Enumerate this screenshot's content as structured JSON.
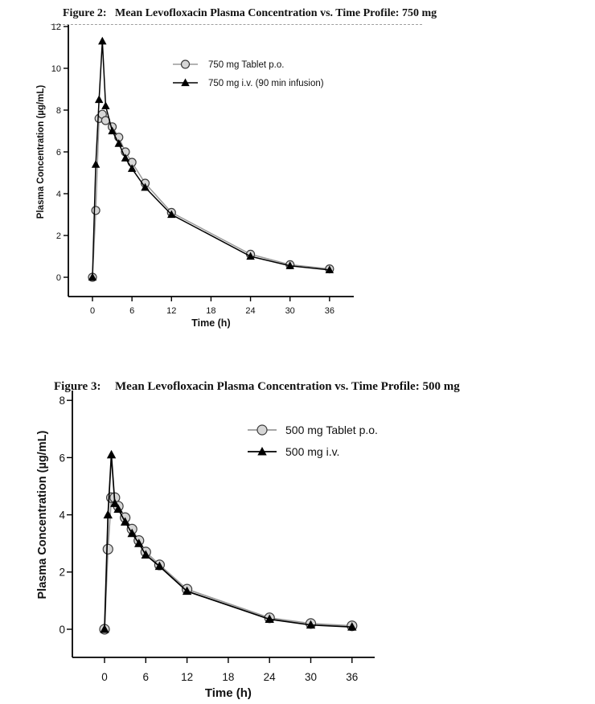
{
  "figure2": {
    "label": "Figure 2:",
    "title": "Mean Levofloxacin Plasma Concentration vs. Time Profile: 750 mg"
  },
  "figure3": {
    "label": "Figure 3:",
    "title": "Mean Levofloxacin Plasma Concentration vs. Time Profile: 500 mg"
  },
  "chart_data": [
    {
      "id": "figure-2-750mg",
      "type": "line",
      "title": "Mean Levofloxacin Plasma Concentration vs. Time Profile: 750 mg",
      "xlabel": "Time (h)",
      "ylabel": "Plasma Concentration (µg/mL)",
      "x": [
        0,
        0.5,
        1,
        1.5,
        2,
        3,
        4,
        5,
        6,
        8,
        12,
        24,
        30,
        36
      ],
      "series": [
        {
          "name": "750 mg Tablet p.o.",
          "marker": "circle",
          "line_color": "#9a9a9a",
          "marker_fill": "#d6d6d6",
          "marker_stroke": "#3b3b3b",
          "values": [
            0,
            3.2,
            7.6,
            7.8,
            7.5,
            7.2,
            6.7,
            6.0,
            5.5,
            4.5,
            3.1,
            1.1,
            0.6,
            0.4
          ]
        },
        {
          "name": "750 mg i.v. (90 min infusion)",
          "marker": "triangle",
          "line_color": "#000000",
          "marker_fill": "#000000",
          "marker_stroke": "#000000",
          "values": [
            0,
            5.4,
            8.5,
            11.3,
            8.2,
            7.0,
            6.4,
            5.7,
            5.2,
            4.3,
            3.0,
            1.0,
            0.55,
            0.35
          ]
        }
      ],
      "xticks": [
        0,
        6,
        12,
        18,
        24,
        30,
        36
      ],
      "yticks": [
        0,
        2,
        4,
        6,
        8,
        10,
        12
      ],
      "xlim": [
        -3.5,
        40
      ],
      "ylim": [
        0,
        12
      ],
      "grid": false,
      "legend_position": "upper-center-inside"
    },
    {
      "id": "figure-3-500mg",
      "type": "line",
      "title": "Mean Levofloxacin Plasma Concentration vs. Time Profile: 500 mg",
      "xlabel": "Time (h)",
      "ylabel": "Plasma Concentration (µg/mL)",
      "x": [
        0,
        0.5,
        1,
        1.5,
        2,
        3,
        4,
        5,
        6,
        8,
        12,
        24,
        30,
        36
      ],
      "series": [
        {
          "name": "500 mg Tablet p.o.",
          "marker": "circle",
          "line_color": "#9a9a9a",
          "marker_fill": "#d6d6d6",
          "marker_stroke": "#3b3b3b",
          "values": [
            0,
            2.8,
            4.6,
            4.6,
            4.3,
            3.9,
            3.5,
            3.1,
            2.7,
            2.25,
            1.4,
            0.4,
            0.2,
            0.12
          ]
        },
        {
          "name": "500 mg i.v.",
          "marker": "triangle",
          "line_color": "#000000",
          "marker_fill": "#000000",
          "marker_stroke": "#000000",
          "values": [
            0,
            4.0,
            6.1,
            4.4,
            4.2,
            3.75,
            3.35,
            3.0,
            2.6,
            2.2,
            1.33,
            0.35,
            0.15,
            0.08
          ]
        }
      ],
      "xticks": [
        0,
        6,
        12,
        18,
        24,
        30,
        36
      ],
      "yticks": [
        0,
        2,
        4,
        6,
        8
      ],
      "xlim": [
        -4.5,
        40
      ],
      "ylim": [
        0,
        8
      ],
      "grid": false,
      "legend_position": "upper-right-inside"
    }
  ]
}
